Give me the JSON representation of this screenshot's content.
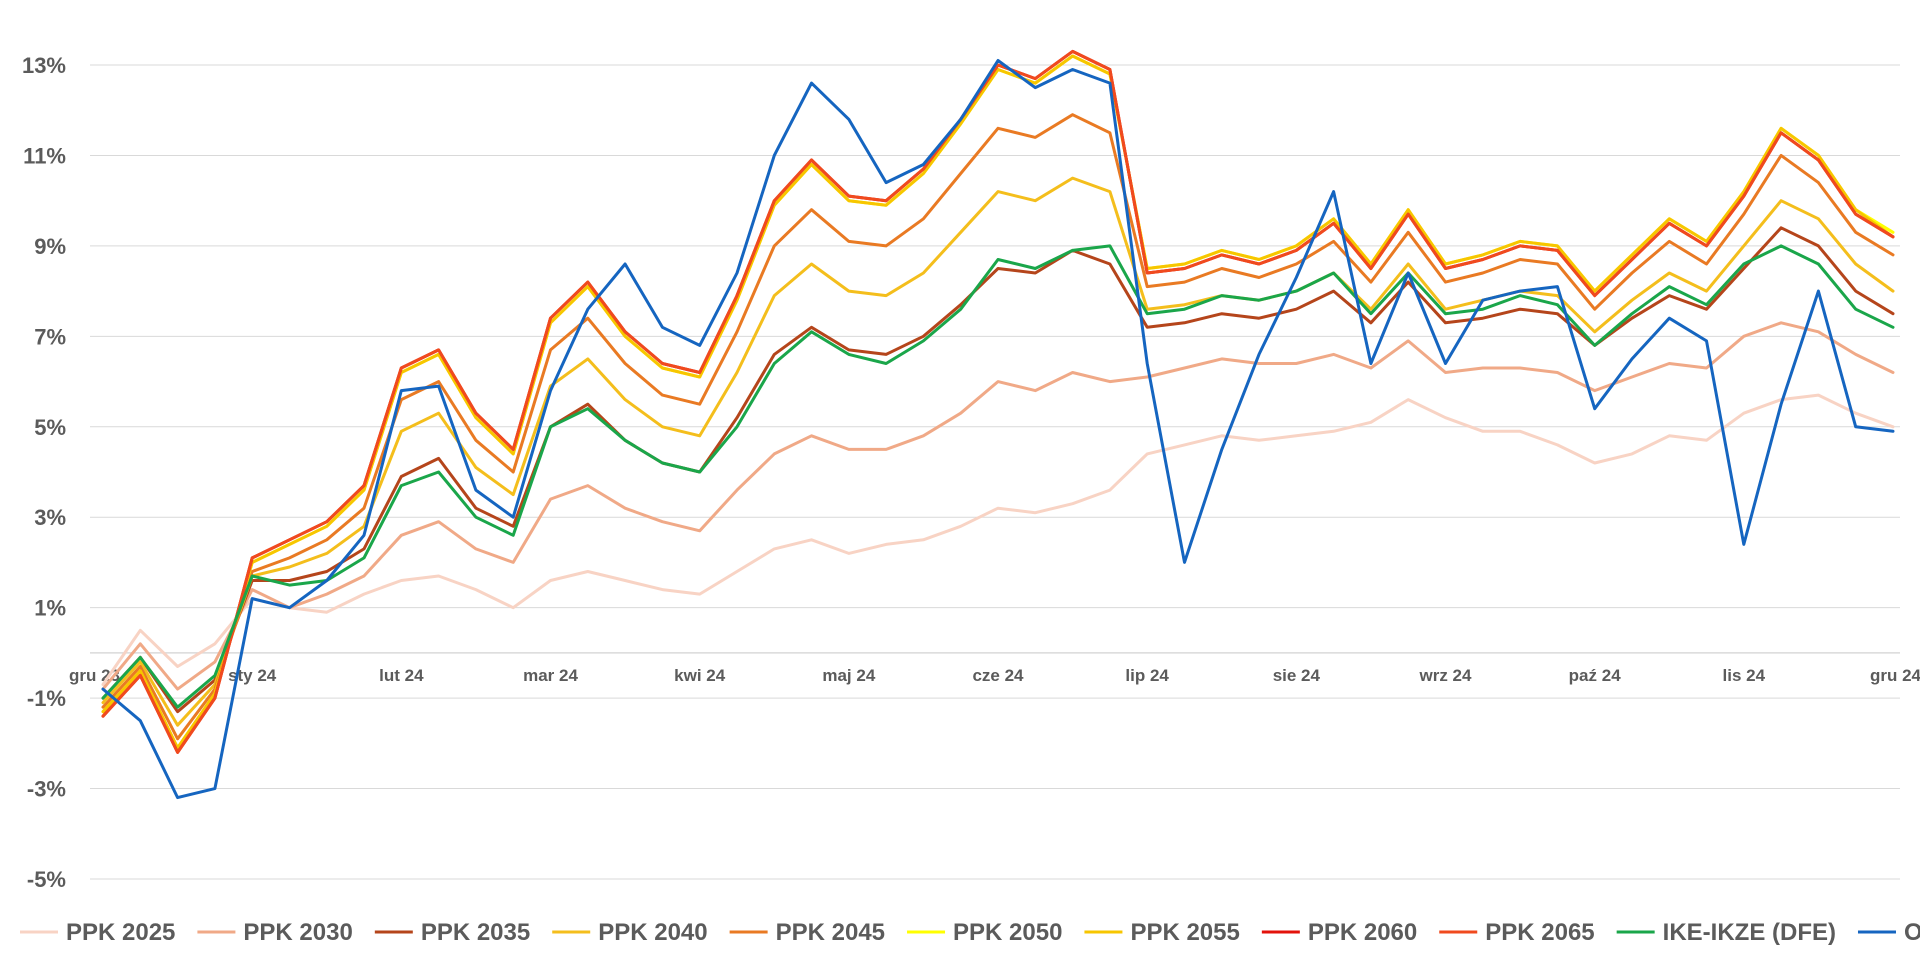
{
  "chart_data": {
    "type": "line",
    "title": "",
    "xlabel": "",
    "ylabel": "",
    "ylim": [
      -5,
      14
    ],
    "y_ticks": [
      13,
      11,
      9,
      7,
      5,
      3,
      1,
      -1,
      -3,
      -5
    ],
    "y_tick_labels": [
      "13%",
      "11%",
      "9%",
      "7%",
      "5%",
      "3%",
      "1%",
      "-1%",
      "-3%",
      "-5%"
    ],
    "x_month_positions": [
      0,
      1,
      2,
      3,
      4,
      5,
      6,
      7,
      8,
      9,
      10,
      11,
      12
    ],
    "x_tick_labels": [
      "gru 23",
      "sty 24",
      "lut 24",
      "mar 24",
      "kwi 24",
      "maj 24",
      "cze 24",
      "lip 24",
      "sie 24",
      "wrz 24",
      "paź 24",
      "lis 24",
      "gru 24"
    ],
    "grid": true,
    "legend_position": "bottom",
    "x": [
      0,
      0.25,
      0.5,
      0.75,
      1,
      1.25,
      1.5,
      1.75,
      2,
      2.25,
      2.5,
      2.75,
      3,
      3.25,
      3.5,
      3.75,
      4,
      4.25,
      4.5,
      4.75,
      5,
      5.25,
      5.5,
      5.75,
      6,
      6.25,
      6.5,
      6.75,
      7,
      7.25,
      7.5,
      7.75,
      8,
      8.25,
      8.5,
      8.75,
      9,
      9.25,
      9.5,
      9.75,
      10,
      10.25,
      10.5,
      10.75,
      11,
      11.25,
      11.5,
      11.75,
      12
    ],
    "series": [
      {
        "name": "PPK 2025",
        "color": "#f8d3c4",
        "values": [
          -0.7,
          0.5,
          -0.3,
          0.2,
          1.2,
          1.0,
          0.9,
          1.3,
          1.6,
          1.7,
          1.4,
          1.0,
          1.6,
          1.8,
          1.6,
          1.4,
          1.3,
          1.8,
          2.3,
          2.5,
          2.2,
          2.4,
          2.5,
          2.8,
          3.2,
          3.1,
          3.3,
          3.6,
          4.4,
          4.6,
          4.8,
          4.7,
          4.8,
          4.9,
          5.1,
          5.6,
          5.2,
          4.9,
          4.9,
          4.6,
          4.2,
          4.4,
          4.8,
          4.7,
          5.3,
          5.6,
          5.7,
          5.3,
          5.0
        ]
      },
      {
        "name": "PPK 2030",
        "color": "#f0a987",
        "values": [
          -0.8,
          0.2,
          -0.8,
          -0.2,
          1.4,
          1.0,
          1.3,
          1.7,
          2.6,
          2.9,
          2.3,
          2.0,
          3.4,
          3.7,
          3.2,
          2.9,
          2.7,
          3.6,
          4.4,
          4.8,
          4.5,
          4.5,
          4.8,
          5.3,
          6.0,
          5.8,
          6.2,
          6.0,
          6.1,
          6.3,
          6.5,
          6.4,
          6.4,
          6.6,
          6.3,
          6.9,
          6.2,
          6.3,
          6.3,
          6.2,
          5.8,
          6.1,
          6.4,
          6.3,
          7.0,
          7.3,
          7.1,
          6.6,
          6.2
        ]
      },
      {
        "name": "PPK 2035",
        "color": "#b5451b",
        "values": [
          -1.0,
          -0.1,
          -1.3,
          -0.6,
          1.6,
          1.6,
          1.8,
          2.3,
          3.9,
          4.3,
          3.2,
          2.8,
          5.0,
          5.5,
          4.7,
          4.2,
          4.0,
          5.2,
          6.6,
          7.2,
          6.7,
          6.6,
          7.0,
          7.7,
          8.5,
          8.4,
          8.9,
          8.6,
          7.2,
          7.3,
          7.5,
          7.4,
          7.6,
          8.0,
          7.3,
          8.2,
          7.3,
          7.4,
          7.6,
          7.5,
          6.8,
          7.4,
          7.9,
          7.6,
          8.5,
          9.4,
          9.0,
          8.0,
          7.5
        ]
      },
      {
        "name": "PPK 2040",
        "color": "#f4be1c",
        "values": [
          -1.1,
          -0.2,
          -1.6,
          -0.7,
          1.7,
          1.9,
          2.2,
          2.8,
          4.9,
          5.3,
          4.1,
          3.5,
          5.9,
          6.5,
          5.6,
          5.0,
          4.8,
          6.2,
          7.9,
          8.6,
          8.0,
          7.9,
          8.4,
          9.3,
          10.2,
          10.0,
          10.5,
          10.2,
          7.6,
          7.7,
          7.9,
          7.8,
          8.0,
          8.4,
          7.6,
          8.6,
          7.6,
          7.8,
          8.0,
          7.9,
          7.1,
          7.8,
          8.4,
          8.0,
          9.0,
          10.0,
          9.6,
          8.6,
          8.0
        ]
      },
      {
        "name": "PPK 2045",
        "color": "#e97a23",
        "values": [
          -1.2,
          -0.3,
          -1.9,
          -0.8,
          1.8,
          2.1,
          2.5,
          3.2,
          5.6,
          6.0,
          4.7,
          4.0,
          6.7,
          7.4,
          6.4,
          5.7,
          5.5,
          7.1,
          9.0,
          9.8,
          9.1,
          9.0,
          9.6,
          10.6,
          11.6,
          11.4,
          11.9,
          11.5,
          8.1,
          8.2,
          8.5,
          8.3,
          8.6,
          9.1,
          8.2,
          9.3,
          8.2,
          8.4,
          8.7,
          8.6,
          7.6,
          8.4,
          9.1,
          8.6,
          9.7,
          11.0,
          10.4,
          9.3,
          8.8
        ]
      },
      {
        "name": "PPK 2050",
        "color": "#ffff00",
        "values": [
          -1.3,
          -0.4,
          -2.1,
          -0.9,
          2.0,
          2.4,
          2.8,
          3.6,
          6.2,
          6.6,
          5.2,
          4.4,
          7.3,
          8.1,
          7.0,
          6.3,
          6.1,
          7.8,
          9.9,
          10.8,
          10.0,
          9.9,
          10.6,
          11.7,
          12.9,
          12.6,
          13.2,
          12.8,
          8.5,
          8.6,
          8.9,
          8.7,
          9.0,
          9.6,
          8.6,
          9.8,
          8.6,
          8.8,
          9.1,
          9.0,
          8.0,
          8.8,
          9.6,
          9.1,
          10.2,
          11.6,
          11.0,
          9.8,
          9.3
        ]
      },
      {
        "name": "PPK 2055",
        "color": "#f7c600",
        "values": [
          -1.3,
          -0.4,
          -2.1,
          -0.9,
          2.0,
          2.4,
          2.8,
          3.6,
          6.2,
          6.6,
          5.2,
          4.4,
          7.3,
          8.1,
          7.0,
          6.3,
          6.1,
          7.8,
          9.9,
          10.8,
          10.0,
          9.9,
          10.6,
          11.7,
          12.9,
          12.6,
          13.2,
          12.8,
          8.5,
          8.6,
          8.9,
          8.7,
          9.0,
          9.6,
          8.6,
          9.8,
          8.6,
          8.8,
          9.1,
          9.0,
          8.0,
          8.8,
          9.6,
          9.1,
          10.2,
          11.6,
          11.0,
          9.8,
          9.2
        ]
      },
      {
        "name": "PPK 2060",
        "color": "#e3120b",
        "values": [
          -1.4,
          -0.5,
          -2.2,
          -1.0,
          2.1,
          2.5,
          2.9,
          3.7,
          6.3,
          6.7,
          5.3,
          4.5,
          7.4,
          8.2,
          7.1,
          6.4,
          6.2,
          7.9,
          10.0,
          10.9,
          10.1,
          10.0,
          10.7,
          11.8,
          13.0,
          12.7,
          13.3,
          12.9,
          8.4,
          8.5,
          8.8,
          8.6,
          8.9,
          9.5,
          8.5,
          9.7,
          8.5,
          8.7,
          9.0,
          8.9,
          7.9,
          8.7,
          9.5,
          9.0,
          10.1,
          11.5,
          10.9,
          9.7,
          9.2
        ]
      },
      {
        "name": "PPK 2065",
        "color": "#f04a1e",
        "values": [
          -1.4,
          -0.5,
          -2.2,
          -1.0,
          2.1,
          2.5,
          2.9,
          3.7,
          6.3,
          6.7,
          5.3,
          4.5,
          7.4,
          8.2,
          7.1,
          6.4,
          6.2,
          7.9,
          10.0,
          10.9,
          10.1,
          10.0,
          10.7,
          11.8,
          13.0,
          12.7,
          13.3,
          12.9,
          8.4,
          8.5,
          8.8,
          8.6,
          8.9,
          9.5,
          8.5,
          9.7,
          8.5,
          8.7,
          9.0,
          8.9,
          7.9,
          8.7,
          9.5,
          9.0,
          10.1,
          11.5,
          10.9,
          9.7,
          9.2
        ]
      },
      {
        "name": "IKE-IKZE (DFE)",
        "color": "#1aa64a",
        "values": [
          -1.0,
          -0.1,
          -1.2,
          -0.5,
          1.7,
          1.5,
          1.6,
          2.1,
          3.7,
          4.0,
          3.0,
          2.6,
          5.0,
          5.4,
          4.7,
          4.2,
          4.0,
          5.0,
          6.4,
          7.1,
          6.6,
          6.4,
          6.9,
          7.6,
          8.7,
          8.5,
          8.9,
          9.0,
          7.5,
          7.6,
          7.9,
          7.8,
          8.0,
          8.4,
          7.5,
          8.4,
          7.5,
          7.6,
          7.9,
          7.7,
          6.8,
          7.5,
          8.1,
          7.7,
          8.6,
          9.0,
          8.6,
          7.6,
          7.2
        ]
      },
      {
        "name": "OFE",
        "color": "#1565c0",
        "values": [
          -0.8,
          -1.5,
          -3.2,
          -3.0,
          1.2,
          1.0,
          1.6,
          2.6,
          5.8,
          5.9,
          3.6,
          3.0,
          5.8,
          7.6,
          8.6,
          7.2,
          6.8,
          8.4,
          11.0,
          12.6,
          11.8,
          10.4,
          10.8,
          11.8,
          13.1,
          12.5,
          12.9,
          12.6,
          6.4,
          2.0,
          4.5,
          6.6,
          8.3,
          10.2,
          6.4,
          8.4,
          6.4,
          7.8,
          8.0,
          8.1,
          5.4,
          6.5,
          7.4,
          6.9,
          2.4,
          5.5,
          8.0,
          5.0,
          4.9
        ]
      }
    ]
  }
}
